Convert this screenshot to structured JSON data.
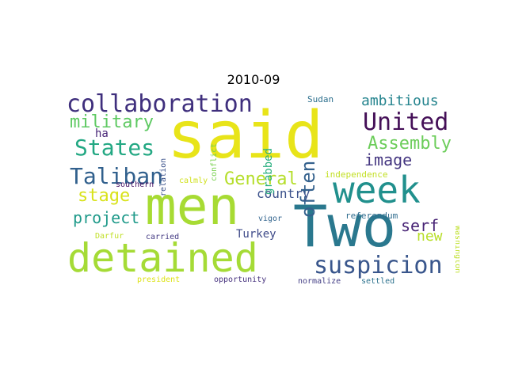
{
  "title": "2010-09",
  "words": [
    {
      "text": "said",
      "color": "#e8e419",
      "vertical": false
    },
    {
      "text": "men",
      "color": "#a7db33",
      "vertical": false
    },
    {
      "text": "Two",
      "color": "#2a788e",
      "vertical": false
    },
    {
      "text": "week",
      "color": "#21908d",
      "vertical": false
    },
    {
      "text": "detained",
      "color": "#a5db36",
      "vertical": false
    },
    {
      "text": "collaboration",
      "color": "#3f2f7d",
      "vertical": false
    },
    {
      "text": "United",
      "color": "#440f57",
      "vertical": false
    },
    {
      "text": "States",
      "color": "#23a883",
      "vertical": false
    },
    {
      "text": "military",
      "color": "#5ec962",
      "vertical": false
    },
    {
      "text": "Taliban",
      "color": "#31608d",
      "vertical": false
    },
    {
      "text": "suspicion",
      "color": "#39568c",
      "vertical": false
    },
    {
      "text": "General",
      "color": "#b5de2b",
      "vertical": false
    },
    {
      "text": "ambitious",
      "color": "#25848e",
      "vertical": false
    },
    {
      "text": "Assembly",
      "color": "#6ccd5a",
      "vertical": false
    },
    {
      "text": "image",
      "color": "#453781",
      "vertical": false
    },
    {
      "text": "often",
      "color": "#34618d",
      "vertical": true
    },
    {
      "text": "stage",
      "color": "#d8e219",
      "vertical": false
    },
    {
      "text": "project",
      "color": "#1f9a8a",
      "vertical": false
    },
    {
      "text": "country",
      "color": "#3b518b",
      "vertical": false
    },
    {
      "text": "ha",
      "color": "#482677",
      "vertical": false
    },
    {
      "text": "serf",
      "color": "#482475",
      "vertical": false
    },
    {
      "text": "new",
      "color": "#b8de29",
      "vertical": false
    },
    {
      "text": "Turkey",
      "color": "#3e4a89",
      "vertical": false
    },
    {
      "text": "grabbed",
      "color": "#29af7f",
      "vertical": true
    },
    {
      "text": "conflict",
      "color": "#7ad151",
      "vertical": true
    },
    {
      "text": "relation",
      "color": "#3b528b",
      "vertical": true
    },
    {
      "text": "Sudan",
      "color": "#2d708e",
      "vertical": false
    },
    {
      "text": "independence",
      "color": "#c2df23",
      "vertical": false
    },
    {
      "text": "calmly",
      "color": "#d0e11c",
      "vertical": false
    },
    {
      "text": "southern",
      "color": "#471365",
      "vertical": false
    },
    {
      "text": "referendum",
      "color": "#2f6c8e",
      "vertical": false
    },
    {
      "text": "vigor",
      "color": "#32648e",
      "vertical": false
    },
    {
      "text": "Darfur",
      "color": "#c0df25",
      "vertical": false
    },
    {
      "text": "carried",
      "color": "#443a83",
      "vertical": false
    },
    {
      "text": "Washington",
      "color": "#bddf26",
      "vertical": true
    },
    {
      "text": "president",
      "color": "#dde318",
      "vertical": false
    },
    {
      "text": "opportunity",
      "color": "#46327e",
      "vertical": false
    },
    {
      "text": "normalize",
      "color": "#433e85",
      "vertical": false
    },
    {
      "text": "settled",
      "color": "#2c728e",
      "vertical": false
    }
  ]
}
